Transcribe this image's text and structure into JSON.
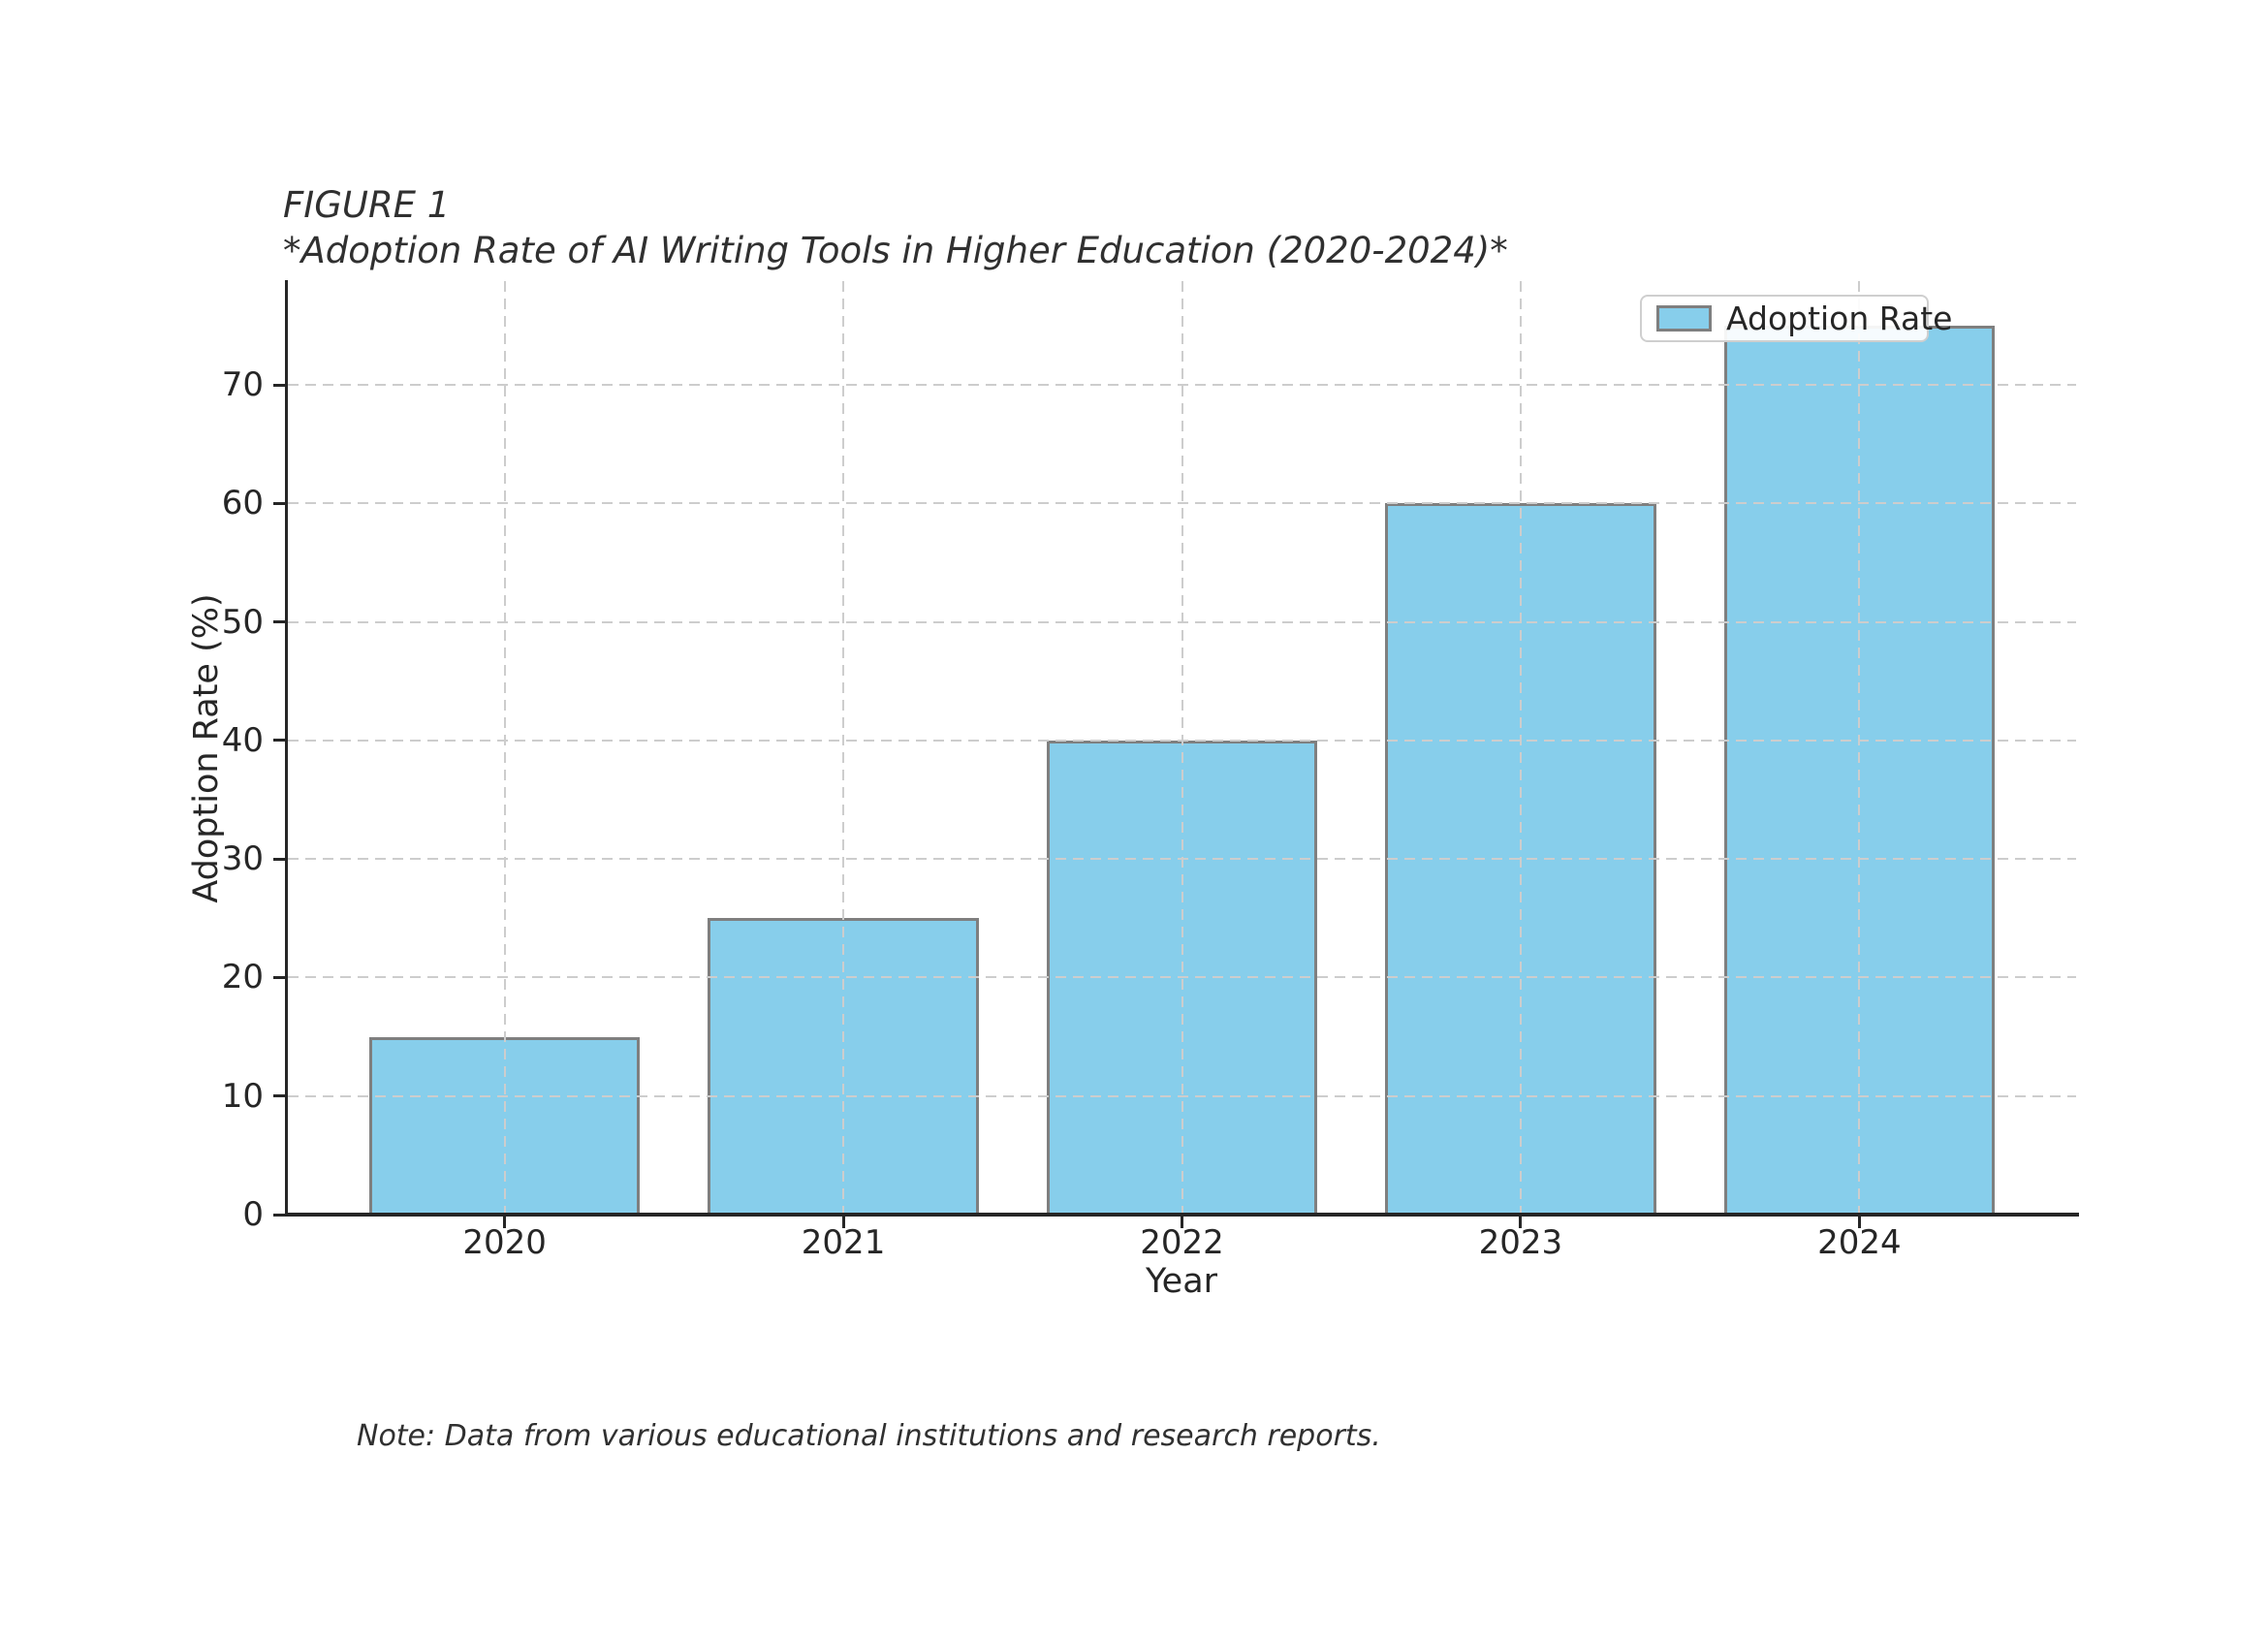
{
  "figure": {
    "title_line1": "FIGURE 1",
    "title_line2": "*Adoption Rate of AI Writing Tools in Higher Education (2020-2024)*",
    "note": "Note: Data from various educational institutions and research reports."
  },
  "chart_data": {
    "type": "bar",
    "title": "FIGURE 1",
    "subtitle": "*Adoption Rate of AI Writing Tools in Higher Education (2020-2024)*",
    "categories": [
      "2020",
      "2021",
      "2022",
      "2023",
      "2024"
    ],
    "series": [
      {
        "name": "Adoption Rate",
        "values": [
          15,
          25,
          40,
          60,
          75
        ]
      }
    ],
    "xlabel": "Year",
    "ylabel": "Adoption Rate (%)",
    "yticks": [
      0,
      10,
      20,
      30,
      40,
      50,
      60,
      70
    ],
    "ylim": [
      0,
      78.75
    ],
    "xlim": [
      -0.64,
      4.64
    ],
    "bar_width_frac": 0.8,
    "grid": "both",
    "grid_style": "dashed",
    "legend_position": "upper-right",
    "note": "Note: Data from various educational institutions and research reports.",
    "colors": {
      "bar_fill": "#87ceeb",
      "bar_edge": "#7f7f7f",
      "grid": "#cdcdcd",
      "spine": "#262626",
      "text": "#262626",
      "legend_border": "#cfcfcf",
      "legend_bg": "#ffffff",
      "background": "#ffffff"
    }
  }
}
